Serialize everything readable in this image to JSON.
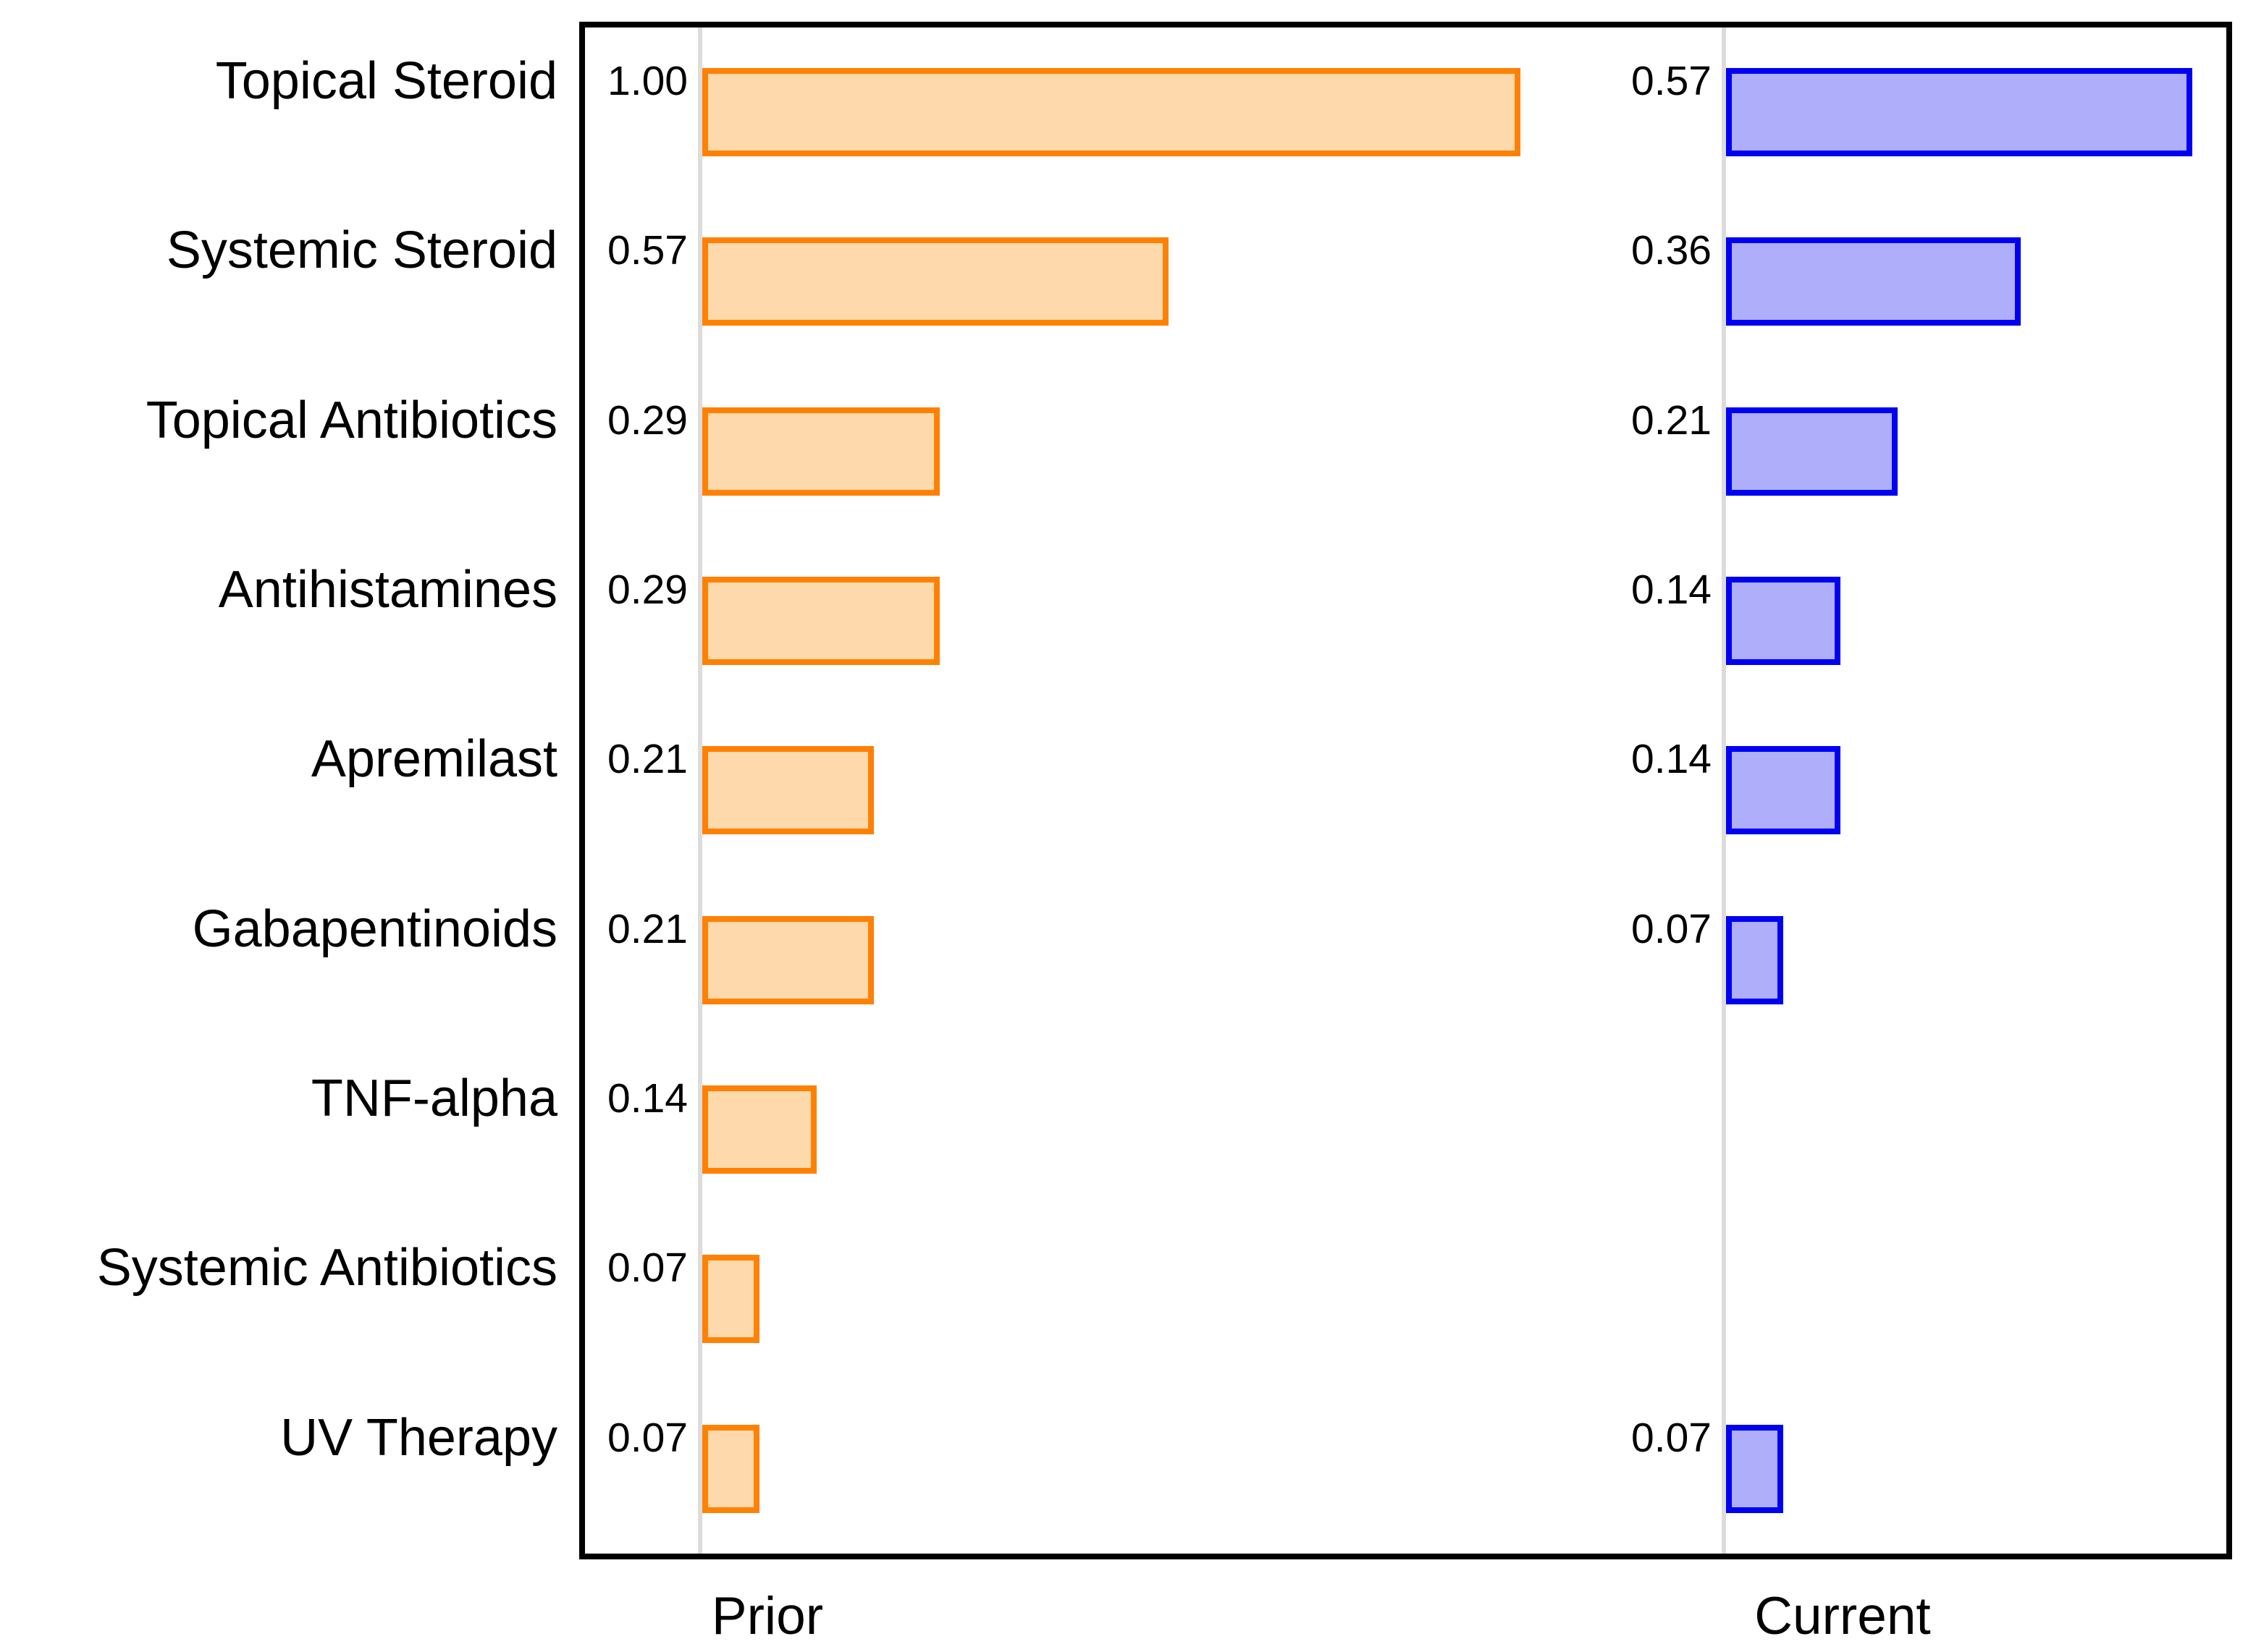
{
  "chart_data": {
    "type": "bar",
    "orientation": "horizontal",
    "title": "",
    "categories": [
      "Topical Steroid",
      "Systemic Steroid",
      "Topical Antibiotics",
      "Antihistamines",
      "Apremilast",
      "Gabapentinoids",
      "TNF-alpha",
      "Systemic Antibiotics",
      "UV Therapy"
    ],
    "series": [
      {
        "name": "Prior",
        "values": [
          1.0,
          0.57,
          0.29,
          0.29,
          0.21,
          0.21,
          0.14,
          0.07,
          0.07
        ],
        "labels": [
          "1.00",
          "0.57",
          "0.29",
          "0.29",
          "0.21",
          "0.21",
          "0.14",
          "0.07",
          "0.07"
        ],
        "fill_color": "#FED9AB",
        "edge_color": "#FF8104"
      },
      {
        "name": "Current",
        "values": [
          0.57,
          0.36,
          0.21,
          0.14,
          0.14,
          0.07,
          null,
          null,
          0.07
        ],
        "labels": [
          "0.57",
          "0.36",
          "0.21",
          "0.14",
          "0.14",
          "0.07",
          "",
          "",
          "0.07"
        ],
        "fill_color": "#AEAEFB",
        "edge_color": "#0000F2"
      }
    ],
    "xlabels": [
      "Prior",
      "Current"
    ],
    "value_axis_range": [
      0,
      1.0
    ],
    "grid": "zero-baselines-only",
    "legend": "none",
    "baseline_color": "#DCDCDC",
    "frame_color": "#000000"
  }
}
